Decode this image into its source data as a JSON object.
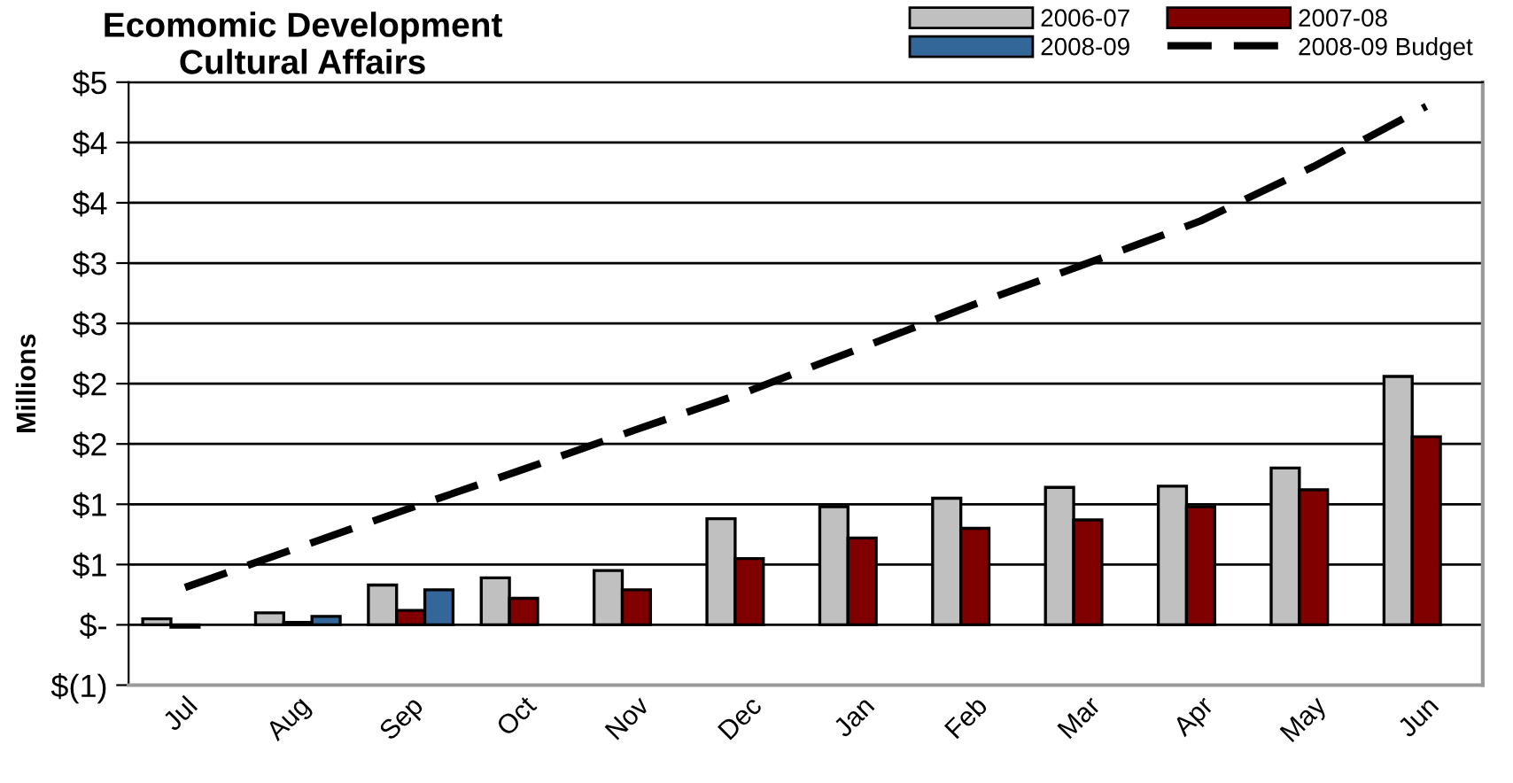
{
  "chart_data": {
    "type": "bar",
    "title": "Ecomomic Development\nCultural Affairs",
    "ylabel": "Millions",
    "categories": [
      "Jul",
      "Aug",
      "Sep",
      "Oct",
      "Nov",
      "Dec",
      "Jan",
      "Feb",
      "Mar",
      "Apr",
      "May",
      "Jun"
    ],
    "series": [
      {
        "name": "2006-07",
        "color": "#c0c0c0",
        "values": [
          0.05,
          0.1,
          0.33,
          0.39,
          0.45,
          0.88,
          0.98,
          1.05,
          1.14,
          1.15,
          1.3,
          2.06
        ]
      },
      {
        "name": "2007-08",
        "color": "#800000",
        "values": [
          -0.02,
          0.02,
          0.12,
          0.22,
          0.29,
          0.55,
          0.72,
          0.8,
          0.87,
          0.98,
          1.12,
          1.56
        ]
      },
      {
        "name": "2008-09",
        "color": "#336699",
        "values": [
          null,
          0.07,
          0.29,
          null,
          null,
          null,
          null,
          null,
          null,
          null,
          null,
          null
        ]
      },
      {
        "name": "2008-09 Budget",
        "type": "line",
        "color": "#000000",
        "line_style": "dashed",
        "values": [
          0.31,
          0.64,
          0.97,
          1.29,
          1.62,
          1.94,
          2.3,
          2.66,
          3.0,
          3.35,
          3.8,
          4.3
        ]
      }
    ],
    "ylim": [
      -0.5,
      4.5
    ],
    "yticks": [
      {
        "value": -0.5,
        "label": "$(1)"
      },
      {
        "value": 0,
        "label": "$-"
      },
      {
        "value": 0.5,
        "label": "$1"
      },
      {
        "value": 1,
        "label": "$1"
      },
      {
        "value": 1.5,
        "label": "$2"
      },
      {
        "value": 2,
        "label": "$2"
      },
      {
        "value": 2.5,
        "label": "$3"
      },
      {
        "value": 3,
        "label": "$3"
      },
      {
        "value": 3.5,
        "label": "$4"
      },
      {
        "value": 4,
        "label": "$4"
      },
      {
        "value": 4.5,
        "label": "$5"
      }
    ],
    "grid": "y",
    "legend": "top right"
  }
}
